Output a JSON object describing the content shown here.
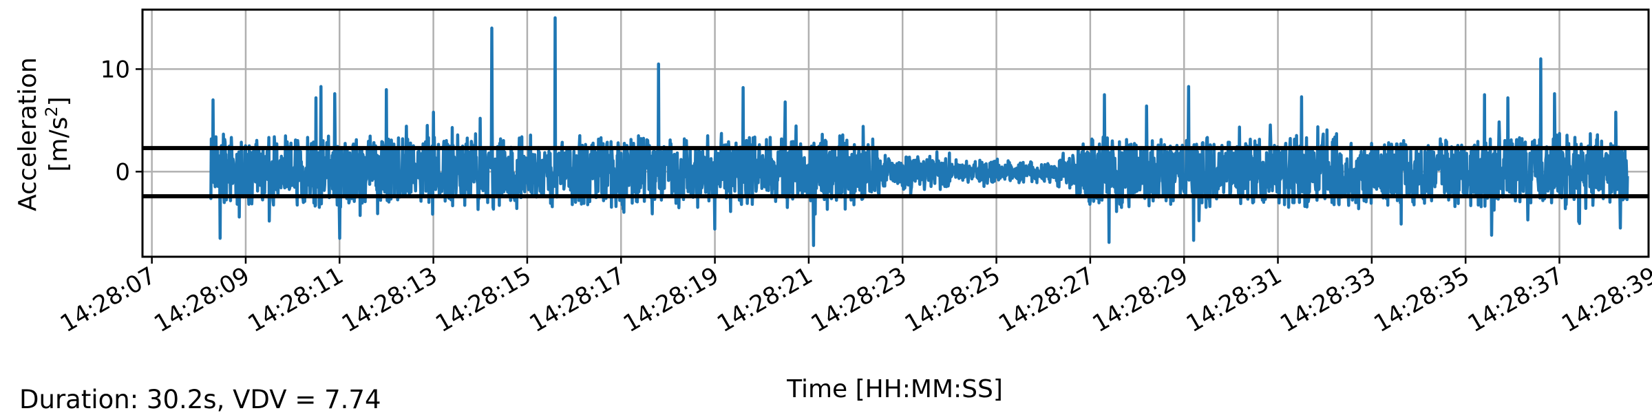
{
  "chart_data": {
    "type": "line",
    "title": "",
    "xlabel": "Time [HH:MM:SS]",
    "ylabel_line1": "Acceleration",
    "ylabel_line2_prefix": "[m/s",
    "ylabel_line2_sup": "2",
    "ylabel_line2_suffix": "]",
    "footer": "Duration: 30.2s, VDV = 7.74",
    "xlim_seconds": [
      -0.2,
      31.9
    ],
    "ylim": [
      -8.3,
      15.8
    ],
    "y_ticks": [
      0,
      10
    ],
    "x_tick_labels": [
      "14:28:07",
      "14:28:09",
      "14:28:11",
      "14:28:13",
      "14:28:15",
      "14:28:17",
      "14:28:19",
      "14:28:21",
      "14:28:23",
      "14:28:25",
      "14:28:27",
      "14:28:29",
      "14:28:31",
      "14:28:33",
      "14:28:35",
      "14:28:37",
      "14:28:39"
    ],
    "x_tick_seconds": [
      0,
      2,
      4,
      6,
      8,
      10,
      12,
      14,
      16,
      18,
      20,
      22,
      24,
      26,
      28,
      30,
      32
    ],
    "grid": true,
    "signal_start_seconds": 1.25,
    "signal_end_seconds": 31.45,
    "threshold_lines": [
      2.3,
      -2.4
    ],
    "colors": {
      "series": "#1f77b4",
      "threshold": "#000000",
      "grid": "#b0b0b0"
    },
    "series": [
      {
        "peaks": [
          {
            "t": 1.3,
            "v": 7.0
          },
          {
            "t": 1.45,
            "v": -6.5
          },
          {
            "t": 3.5,
            "v": 7.2
          },
          {
            "t": 3.6,
            "v": 8.3
          },
          {
            "t": 3.9,
            "v": 7.6
          },
          {
            "t": 4.0,
            "v": -6.5
          },
          {
            "t": 5.0,
            "v": 8.0
          },
          {
            "t": 6.0,
            "v": 5.8
          },
          {
            "t": 7.0,
            "v": 5.2
          },
          {
            "t": 7.25,
            "v": 14.0
          },
          {
            "t": 8.6,
            "v": 15.0
          },
          {
            "t": 10.8,
            "v": 10.5
          },
          {
            "t": 12.0,
            "v": -5.6
          },
          {
            "t": 12.6,
            "v": 8.2
          },
          {
            "t": 13.5,
            "v": 6.8
          },
          {
            "t": 14.1,
            "v": -7.2
          },
          {
            "t": 20.3,
            "v": 7.5
          },
          {
            "t": 20.4,
            "v": -6.9
          },
          {
            "t": 21.2,
            "v": 6.4
          },
          {
            "t": 22.1,
            "v": 8.3
          },
          {
            "t": 22.2,
            "v": -6.7
          },
          {
            "t": 24.5,
            "v": 7.3
          },
          {
            "t": 28.4,
            "v": 7.5
          },
          {
            "t": 28.55,
            "v": -6.2
          },
          {
            "t": 28.9,
            "v": 7.2
          },
          {
            "t": 29.6,
            "v": 11.0
          },
          {
            "t": 29.9,
            "v": 7.6
          },
          {
            "t": 31.2,
            "v": 5.8
          },
          {
            "t": 31.3,
            "v": -5.5
          }
        ]
      }
    ]
  }
}
